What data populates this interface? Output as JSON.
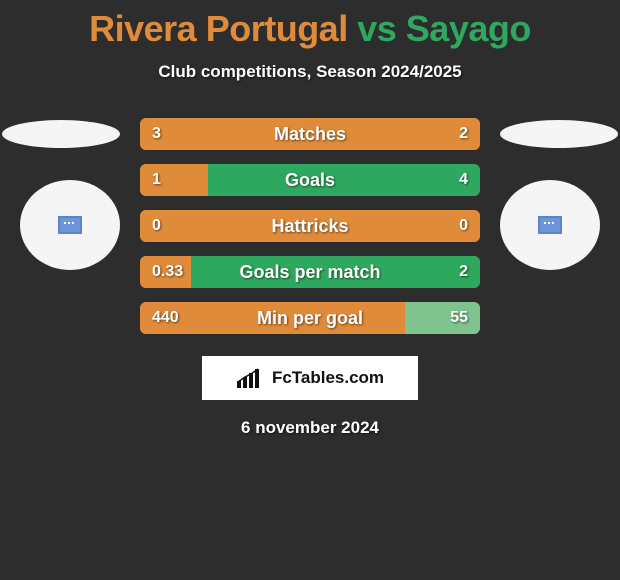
{
  "header": {
    "team_a": "Rivera Portugal",
    "team_b": "Sayago",
    "vs": "vs",
    "title_color_a": "#e08b3a",
    "title_color_vs": "#2fa85f",
    "title_color_b": "#2fa85f",
    "subtitle": "Club competitions, Season 2024/2025"
  },
  "colors": {
    "background": "#2d2d2d",
    "left_bar": "#e08b3a",
    "right_bar_green": "#2fa85f",
    "right_bar_green_soft": "#7fc48f",
    "text": "#ffffff"
  },
  "bars": [
    {
      "label": "Matches",
      "left_val": "3",
      "right_val": "2",
      "left_pct": 100,
      "right_fill_color": "#e08b3a",
      "right_pct": 0
    },
    {
      "label": "Goals",
      "left_val": "1",
      "right_val": "4",
      "left_pct": 20,
      "right_fill_color": "#2fa85f",
      "right_pct": 80
    },
    {
      "label": "Hattricks",
      "left_val": "0",
      "right_val": "0",
      "left_pct": 100,
      "right_fill_color": "#e08b3a",
      "right_pct": 0
    },
    {
      "label": "Goals per match",
      "left_val": "0.33",
      "right_val": "2",
      "left_pct": 15,
      "right_fill_color": "#2fa85f",
      "right_pct": 85
    },
    {
      "label": "Min per goal",
      "left_val": "440",
      "right_val": "55",
      "left_pct": 78,
      "right_fill_color": "#7fc48f",
      "right_pct": 22
    }
  ],
  "brand": {
    "text": "FcTables.com"
  },
  "date": "6 november 2024"
}
